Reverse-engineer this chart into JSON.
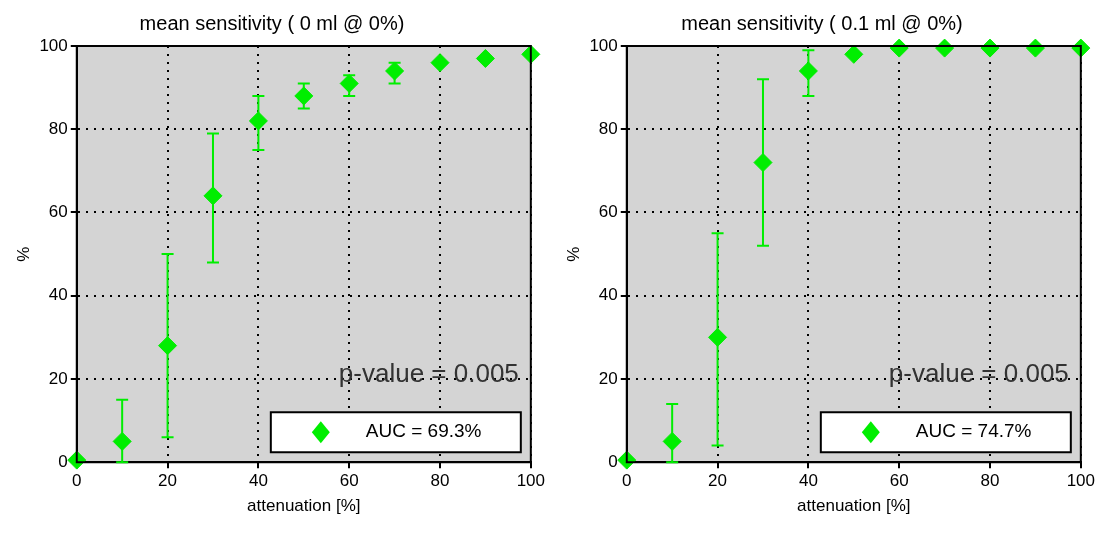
{
  "chart_data": [
    {
      "type": "scatter",
      "title": "mean sensitivity ( 0 ml @ 0%)",
      "xlabel": "attenuation [%]",
      "ylabel": "%",
      "annotations": [
        "p-value = 0.005"
      ],
      "x": [
        0,
        10,
        20,
        30,
        40,
        50,
        60,
        70,
        80,
        90,
        100
      ],
      "series": [
        {
          "name": "AUC = 69.3%",
          "color": "#00ee00",
          "values": [
            0.5,
            5,
            28,
            64,
            82,
            88,
            91,
            94,
            96,
            97,
            98
          ],
          "errors": [
            null,
            [
              0,
              15
            ],
            [
              6,
              50
            ],
            [
              48,
              79
            ],
            [
              75,
              88
            ],
            [
              85,
              91
            ],
            [
              88,
              93
            ],
            [
              91,
              96
            ],
            null,
            null,
            null
          ]
        }
      ],
      "xlim": [
        0,
        100
      ],
      "xticks": [
        0,
        20,
        40,
        60,
        80,
        100
      ],
      "ylim": [
        0,
        100
      ],
      "yticks": [
        0,
        20,
        40,
        60,
        80,
        100
      ],
      "grid": true,
      "legend": "bottom right",
      "marker": "diamond"
    },
    {
      "type": "scatter",
      "title": "mean sensitivity ( 0.1 ml @ 0%)",
      "xlabel": "attenuation [%]",
      "ylabel": "%",
      "annotations": [
        "p-value = 0.005"
      ],
      "x": [
        0,
        10,
        20,
        30,
        40,
        50,
        60,
        70,
        80,
        90,
        100
      ],
      "series": [
        {
          "name": "AUC = 74.7%",
          "color": "#00ee00",
          "values": [
            0.5,
            5,
            30,
            72,
            94,
            98,
            99.5,
            99.5,
            99.5,
            99.5,
            99.5
          ],
          "errors": [
            null,
            [
              0,
              14
            ],
            [
              4,
              55
            ],
            [
              52,
              92
            ],
            [
              88,
              99
            ],
            null,
            null,
            null,
            null,
            null,
            null
          ]
        }
      ],
      "xlim": [
        0,
        100
      ],
      "xticks": [
        0,
        20,
        40,
        60,
        80,
        100
      ],
      "ylim": [
        0,
        100
      ],
      "yticks": [
        0,
        20,
        40,
        60,
        80,
        100
      ],
      "grid": true,
      "legend": "bottom right",
      "marker": "diamond"
    }
  ]
}
